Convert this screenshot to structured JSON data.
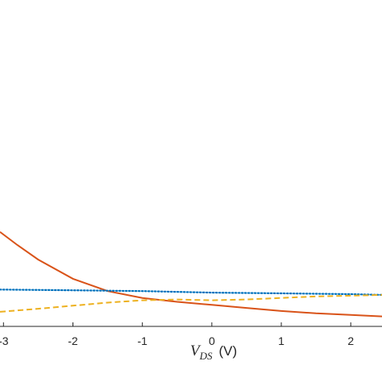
{
  "chart_data": {
    "type": "line",
    "title": "",
    "xlabel": {
      "symbol": "V",
      "subscript": "DS",
      "unit": "(V)"
    },
    "ylabel": "",
    "xlim": [
      -3.05,
      2.45
    ],
    "ylim": [
      -0.95,
      3.3
    ],
    "grid": false,
    "legend": "none",
    "x_ticks": [
      {
        "value": -3,
        "label": "-3"
      },
      {
        "value": -2,
        "label": "-2"
      },
      {
        "value": -1,
        "label": "-1"
      },
      {
        "value": 0,
        "label": "0"
      },
      {
        "value": 1,
        "label": "1"
      },
      {
        "value": 2,
        "label": "2"
      }
    ],
    "series": [
      {
        "color": "#D95319",
        "dash": "solid",
        "x": [
          -3.05,
          -2.8,
          -2.5,
          -2.0,
          -1.5,
          -1.0,
          -0.5,
          0.0,
          0.5,
          1.0,
          1.5,
          2.0,
          2.45
        ],
        "y": [
          0.28,
          0.11,
          -0.08,
          -0.33,
          -0.49,
          -0.58,
          -0.63,
          -0.67,
          -0.71,
          -0.75,
          -0.78,
          -0.8,
          -0.82
        ]
      },
      {
        "color": "#0072BD",
        "dash": "dotted",
        "x": [
          -3.05,
          -2.0,
          -1.0,
          0.0,
          1.0,
          2.0,
          2.45
        ],
        "y": [
          -0.47,
          -0.48,
          -0.49,
          -0.51,
          -0.52,
          -0.53,
          -0.54
        ]
      },
      {
        "color": "#EDB120",
        "dash": "dashed",
        "x": [
          -3.05,
          -2.5,
          -2.0,
          -1.5,
          -1.0,
          -0.5,
          0.0,
          0.5,
          1.0,
          1.5,
          2.0,
          2.45
        ],
        "y": [
          -0.76,
          -0.72,
          -0.68,
          -0.64,
          -0.61,
          -0.6,
          -0.61,
          -0.6,
          -0.58,
          -0.56,
          -0.55,
          -0.54
        ]
      }
    ]
  }
}
